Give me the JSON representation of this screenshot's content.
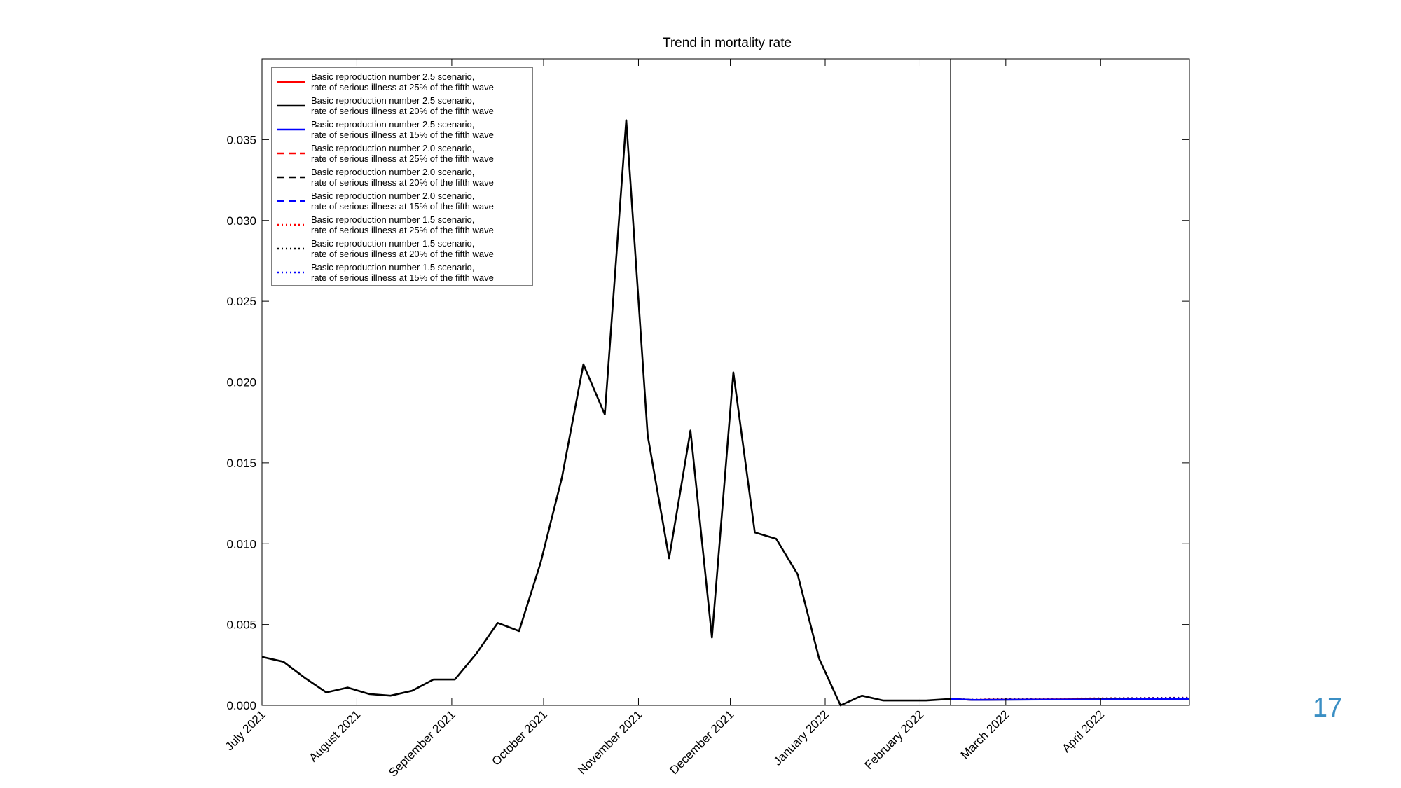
{
  "slide": {
    "page_number": "17"
  },
  "chart_data": {
    "type": "line",
    "title": "Trend in mortality rate",
    "xlabel": "",
    "ylabel": "",
    "ylim": [
      0,
      0.04
    ],
    "yticks": [
      "0.000",
      "0.005",
      "0.010",
      "0.015",
      "0.020",
      "0.025",
      "0.030",
      "0.035"
    ],
    "xlim": [
      "2021-07-01",
      "2022-04-30"
    ],
    "xticks": [
      {
        "date": "2021-07-01",
        "label": "July 2021"
      },
      {
        "date": "2021-08-01",
        "label": "August 2021"
      },
      {
        "date": "2021-09-01",
        "label": "September 2021"
      },
      {
        "date": "2021-10-01",
        "label": "October 2021"
      },
      {
        "date": "2021-11-01",
        "label": "November 2021"
      },
      {
        "date": "2021-12-01",
        "label": "December 2021"
      },
      {
        "date": "2022-01-01",
        "label": "January 2022"
      },
      {
        "date": "2022-02-01",
        "label": "February 2022"
      },
      {
        "date": "2022-03-01",
        "label": "March 2022"
      },
      {
        "date": "2022-04-01",
        "label": "April 2022"
      }
    ],
    "vertical_line_date": "2022-02-11",
    "grid": false,
    "legend_position": "top-left",
    "legend_entries": [
      {
        "line1": "Basic reproduction number 2.5 scenario,",
        "line2": "rate of serious illness at 25% of the fifth wave",
        "color": "#ff0000",
        "style": "solid"
      },
      {
        "line1": "Basic reproduction number 2.5 scenario,",
        "line2": "rate of serious illness at 20% of the fifth wave",
        "color": "#000000",
        "style": "solid"
      },
      {
        "line1": "Basic reproduction number 2.5 scenario,",
        "line2": "rate of serious illness at 15% of the fifth wave",
        "color": "#0000ff",
        "style": "solid"
      },
      {
        "line1": "Basic reproduction number 2.0 scenario,",
        "line2": "rate of serious illness at 25% of the fifth wave",
        "color": "#ff0000",
        "style": "dashed"
      },
      {
        "line1": "Basic reproduction number 2.0 scenario,",
        "line2": "rate of serious illness at 20% of the fifth wave",
        "color": "#000000",
        "style": "dashed"
      },
      {
        "line1": "Basic reproduction number 2.0 scenario,",
        "line2": "rate of serious illness at 15% of the fifth wave",
        "color": "#0000ff",
        "style": "dashed"
      },
      {
        "line1": "Basic reproduction number 1.5 scenario,",
        "line2": "rate of serious illness at 25% of the fifth wave",
        "color": "#ff0000",
        "style": "dotted"
      },
      {
        "line1": "Basic reproduction number 1.5 scenario,",
        "line2": "rate of serious illness at 20% of the fifth wave",
        "color": "#000000",
        "style": "dotted"
      },
      {
        "line1": "Basic reproduction number 1.5 scenario,",
        "line2": "rate of serious illness at 15% of the fifth wave",
        "color": "#0000ff",
        "style": "dotted"
      }
    ],
    "observed_series": {
      "color": "#000000",
      "points": [
        [
          "2021-07-01",
          0.003
        ],
        [
          "2021-07-08",
          0.0027
        ],
        [
          "2021-07-15",
          0.0017
        ],
        [
          "2021-07-22",
          0.0008
        ],
        [
          "2021-07-29",
          0.0011
        ],
        [
          "2021-08-05",
          0.0007
        ],
        [
          "2021-08-12",
          0.0006
        ],
        [
          "2021-08-19",
          0.0009
        ],
        [
          "2021-08-26",
          0.0016
        ],
        [
          "2021-09-02",
          0.0016
        ],
        [
          "2021-09-09",
          0.0032
        ],
        [
          "2021-09-16",
          0.0051
        ],
        [
          "2021-09-23",
          0.0046
        ],
        [
          "2021-09-30",
          0.0088
        ],
        [
          "2021-10-07",
          0.0141
        ],
        [
          "2021-10-14",
          0.0211
        ],
        [
          "2021-10-21",
          0.018
        ],
        [
          "2021-10-28",
          0.0362
        ],
        [
          "2021-11-04",
          0.0167
        ],
        [
          "2021-11-11",
          0.0091
        ],
        [
          "2021-11-18",
          0.017
        ],
        [
          "2021-11-25",
          0.0042
        ],
        [
          "2021-12-02",
          0.0206
        ],
        [
          "2021-12-09",
          0.0107
        ],
        [
          "2021-12-16",
          0.0103
        ],
        [
          "2021-12-23",
          0.0081
        ],
        [
          "2021-12-30",
          0.0029
        ],
        [
          "2022-01-06",
          0.0
        ],
        [
          "2022-01-13",
          0.0006
        ],
        [
          "2022-01-20",
          0.0003
        ],
        [
          "2022-01-27",
          0.0003
        ],
        [
          "2022-02-03",
          0.0003
        ],
        [
          "2022-02-11",
          0.0004
        ]
      ]
    },
    "series": [
      {
        "color": "#ff0000",
        "style": "dotted",
        "points": [
          [
            "2022-02-11",
            0.0004
          ],
          [
            "2022-02-18",
            0.00035
          ],
          [
            "2022-03-04",
            0.0004
          ],
          [
            "2022-03-25",
            0.00043
          ],
          [
            "2022-04-15",
            0.00046
          ],
          [
            "2022-04-30",
            0.00048
          ]
        ]
      },
      {
        "color": "#000000",
        "style": "dotted",
        "points": [
          [
            "2022-02-11",
            0.0004
          ],
          [
            "2022-02-18",
            0.00035
          ],
          [
            "2022-03-04",
            0.00039
          ],
          [
            "2022-03-25",
            0.00042
          ],
          [
            "2022-04-15",
            0.00045
          ],
          [
            "2022-04-30",
            0.00047
          ]
        ]
      },
      {
        "color": "#0000ff",
        "style": "dotted",
        "points": [
          [
            "2022-02-11",
            0.0004
          ],
          [
            "2022-02-18",
            0.00035
          ],
          [
            "2022-03-04",
            0.00038
          ],
          [
            "2022-03-25",
            0.00041
          ],
          [
            "2022-04-15",
            0.00044
          ],
          [
            "2022-04-30",
            0.00046
          ]
        ]
      },
      {
        "color": "#ff0000",
        "style": "solid",
        "points": [
          [
            "2022-02-11",
            0.0004
          ],
          [
            "2022-02-18",
            0.00034
          ],
          [
            "2022-03-04",
            0.00036
          ],
          [
            "2022-03-25",
            0.00038
          ],
          [
            "2022-04-15",
            0.0004
          ],
          [
            "2022-04-30",
            0.00041
          ]
        ]
      },
      {
        "color": "#000000",
        "style": "solid",
        "points": [
          [
            "2022-02-11",
            0.0004
          ],
          [
            "2022-02-18",
            0.00034
          ],
          [
            "2022-03-04",
            0.00035
          ],
          [
            "2022-03-25",
            0.00037
          ],
          [
            "2022-04-15",
            0.00039
          ],
          [
            "2022-04-30",
            0.0004
          ]
        ]
      },
      {
        "color": "#0000ff",
        "style": "solid",
        "points": [
          [
            "2022-02-11",
            0.0004
          ],
          [
            "2022-02-18",
            0.00034
          ],
          [
            "2022-03-04",
            0.00035
          ],
          [
            "2022-03-25",
            0.00036
          ],
          [
            "2022-04-15",
            0.00038
          ],
          [
            "2022-04-30",
            0.00039
          ]
        ]
      }
    ]
  }
}
